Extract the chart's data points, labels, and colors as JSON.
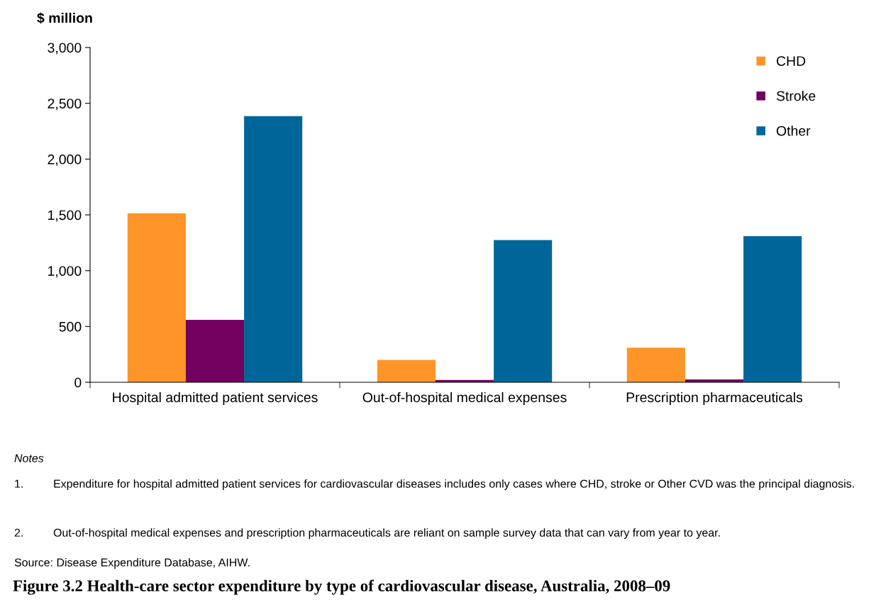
{
  "chart_data": {
    "type": "bar",
    "title": "Figure 3.2 Health-care sector expenditure by type of cardiovascular disease, Australia, 2008–09",
    "ylabel": "$ million",
    "categories": [
      "Hospital admitted patient services",
      "Out-of-hospital medical expenses",
      "Prescription pharmaceuticals"
    ],
    "series": [
      {
        "name": "CHD",
        "color": "#ff9428",
        "values": [
          1515,
          200,
          310
        ]
      },
      {
        "name": "Stroke",
        "color": "#72005e",
        "values": [
          560,
          20,
          25
        ]
      },
      {
        "name": "Other",
        "color": "#006699",
        "values": [
          2385,
          1275,
          1310
        ]
      }
    ],
    "ylim": [
      0,
      3000
    ],
    "yticks": [
      {
        "value": 0,
        "label": "0"
      },
      {
        "value": 500,
        "label": "500"
      },
      {
        "value": 1000,
        "label": "1,000"
      },
      {
        "value": 1500,
        "label": "1,500"
      },
      {
        "value": 2000,
        "label": "2,000"
      },
      {
        "value": 2500,
        "label": "2,500"
      },
      {
        "value": 3000,
        "label": "3,000"
      }
    ],
    "grid": false,
    "legend": "top right",
    "annotations": [
      "Notes",
      "1.\tExpenditure for hospital admitted patient services for cardiovascular diseases includes only cases where CHD, stroke or Other CVD was the principal diagnosis.",
      "2.\tOut-of-hospital medical expenses and prescription pharmaceuticals are reliant on sample survey data that can vary from year to year.",
      "Source: Disease Expenditure Database, AIHW."
    ]
  }
}
